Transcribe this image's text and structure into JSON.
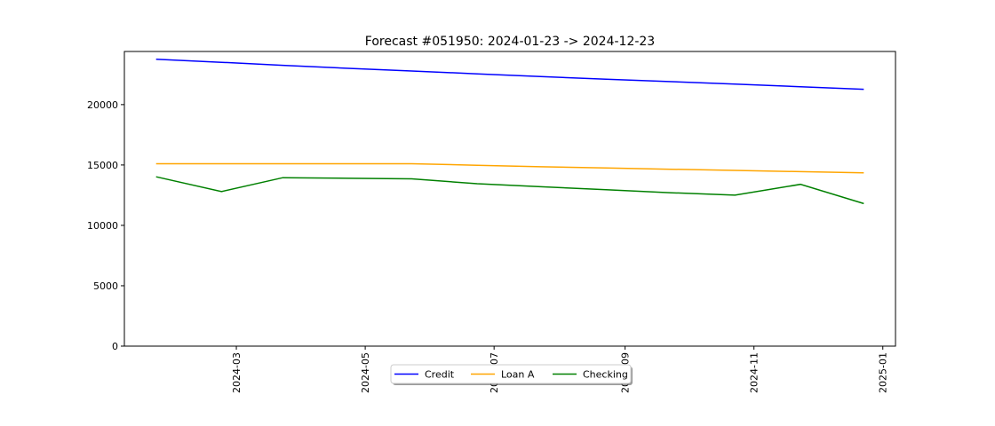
{
  "chart_data": {
    "type": "line",
    "title": "Forecast #051950: 2024-01-23 -> 2024-12-23",
    "xlabel": "",
    "ylabel": "",
    "x": [
      "2024-01-23",
      "2024-02-23",
      "2024-03-23",
      "2024-04-23",
      "2024-05-23",
      "2024-06-23",
      "2024-07-23",
      "2024-08-23",
      "2024-09-23",
      "2024-10-23",
      "2024-11-23",
      "2024-12-23"
    ],
    "xlim": [
      "2024-01-08",
      "2025-01-07"
    ],
    "ylim": [
      0,
      24400
    ],
    "x_ticks": [
      "2024-03",
      "2024-05",
      "2024-07",
      "2024-09",
      "2024-11",
      "2025-01"
    ],
    "y_ticks": [
      0,
      5000,
      10000,
      15000,
      20000
    ],
    "grid": false,
    "legend_position": "bottom-center",
    "series": [
      {
        "name": "Credit",
        "color": "#0000ff",
        "values": [
          23750,
          23500,
          23250,
          23000,
          22780,
          22550,
          22320,
          22100,
          21900,
          21700,
          21480,
          21270
        ]
      },
      {
        "name": "Loan A",
        "color": "#ffa500",
        "values": [
          15100,
          15100,
          15100,
          15100,
          15100,
          14980,
          14850,
          14750,
          14650,
          14550,
          14450,
          14350
        ]
      },
      {
        "name": "Checking",
        "color": "#008000",
        "values": [
          14020,
          12800,
          13950,
          13900,
          13850,
          13450,
          13200,
          12950,
          12700,
          12500,
          13400,
          11800
        ]
      }
    ]
  }
}
